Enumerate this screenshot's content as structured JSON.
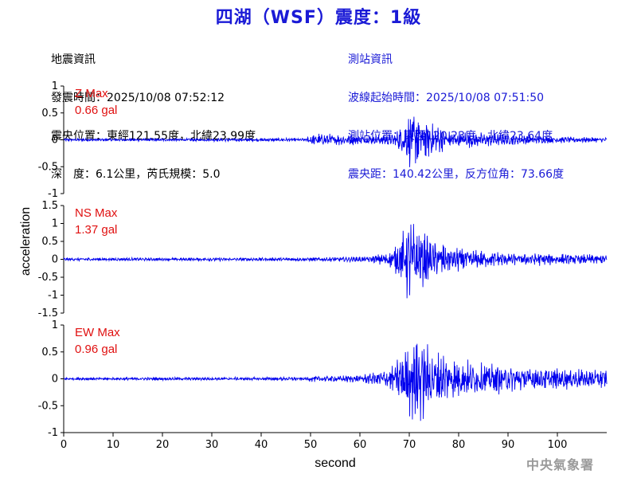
{
  "title": "四湖（WSF）震度：1級",
  "quake_info": {
    "header": "地震資訊",
    "lines": [
      "發震時間：2025/10/08 07:52:12",
      "震央位置：東經121.55度，北緯23.99度",
      "深　度：6.1公里，芮氏規模：5.0"
    ]
  },
  "station_info": {
    "header": "測站資訊",
    "lines": [
      "波線起始時間：2025/10/08 07:51:50",
      "測站位置：東經120.23度，北緯23.64度",
      "震央距：140.42公里，反方位角：73.66度"
    ]
  },
  "footer": "中央氣象署",
  "colors": {
    "trace": "#0000ee",
    "peak_label": "#e01010",
    "title": "#1a1ad6",
    "station_info": "#1a1ad6"
  },
  "chart_data": {
    "type": "line",
    "xlabel": "second",
    "ylabel": "acceleration",
    "xlim": [
      0,
      110
    ],
    "xticks": [
      0,
      10,
      20,
      30,
      40,
      50,
      60,
      70,
      80,
      90,
      100
    ],
    "grid": false,
    "panels": [
      {
        "component": "Z",
        "peak_label": "Z Max",
        "peak_value": "0.66 gal",
        "ylim": [
          -1,
          1
        ],
        "yticks": [
          1,
          0.5,
          0,
          -0.5,
          -1
        ],
        "envelope": [
          [
            0,
            0.03
          ],
          [
            49,
            0.04
          ],
          [
            50,
            0.13
          ],
          [
            55,
            0.12
          ],
          [
            62,
            0.1
          ],
          [
            67,
            0.14
          ],
          [
            69,
            0.38
          ],
          [
            71,
            0.66
          ],
          [
            74,
            0.38
          ],
          [
            78,
            0.2
          ],
          [
            90,
            0.12
          ],
          [
            100,
            0.07
          ],
          [
            110,
            0.05
          ]
        ]
      },
      {
        "component": "NS",
        "peak_label": "NS Max",
        "peak_value": "1.37 gal",
        "ylim": [
          -1.5,
          1.5
        ],
        "yticks": [
          1.5,
          1,
          0.5,
          0,
          -0.5,
          -1,
          -1.5
        ],
        "envelope": [
          [
            0,
            0.05
          ],
          [
            50,
            0.06
          ],
          [
            62,
            0.1
          ],
          [
            66,
            0.25
          ],
          [
            68,
            0.6
          ],
          [
            70,
            1.37
          ],
          [
            72,
            0.9
          ],
          [
            76,
            0.55
          ],
          [
            82,
            0.3
          ],
          [
            90,
            0.22
          ],
          [
            100,
            0.18
          ],
          [
            110,
            0.15
          ]
        ]
      },
      {
        "component": "EW",
        "peak_label": "EW Max",
        "peak_value": "0.96 gal",
        "ylim": [
          -1,
          1
        ],
        "yticks": [
          1,
          0.5,
          0,
          -0.5,
          -1
        ],
        "envelope": [
          [
            0,
            0.03
          ],
          [
            49,
            0.04
          ],
          [
            50,
            0.06
          ],
          [
            60,
            0.08
          ],
          [
            66,
            0.22
          ],
          [
            68,
            0.5
          ],
          [
            70,
            0.75
          ],
          [
            72,
            0.96
          ],
          [
            75,
            0.6
          ],
          [
            80,
            0.4
          ],
          [
            90,
            0.3
          ],
          [
            100,
            0.22
          ],
          [
            110,
            0.2
          ]
        ]
      }
    ]
  }
}
